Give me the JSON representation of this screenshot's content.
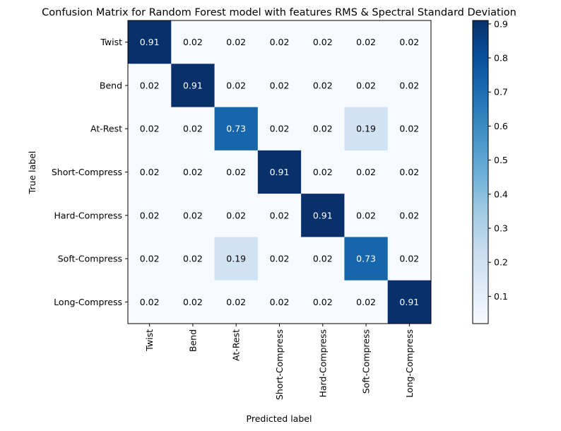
{
  "chart_data": {
    "type": "heatmap",
    "title": "Confusion Matrix for Random Forest model with features RMS & Spectral Standard Deviation",
    "xlabel": "Predicted label",
    "ylabel": "True label",
    "x_categories": [
      "Twist",
      "Bend",
      "At-Rest",
      "Short-Compress",
      "Hard-Compress",
      "Soft-Compress",
      "Long-Compress"
    ],
    "y_categories": [
      "Twist",
      "Bend",
      "At-Rest",
      "Short-Compress",
      "Hard-Compress",
      "Soft-Compress",
      "Long-Compress"
    ],
    "values": [
      [
        0.91,
        0.02,
        0.02,
        0.02,
        0.02,
        0.02,
        0.02
      ],
      [
        0.02,
        0.91,
        0.02,
        0.02,
        0.02,
        0.02,
        0.02
      ],
      [
        0.02,
        0.02,
        0.73,
        0.02,
        0.02,
        0.19,
        0.02
      ],
      [
        0.02,
        0.02,
        0.02,
        0.91,
        0.02,
        0.02,
        0.02
      ],
      [
        0.02,
        0.02,
        0.02,
        0.02,
        0.91,
        0.02,
        0.02
      ],
      [
        0.02,
        0.02,
        0.19,
        0.02,
        0.02,
        0.73,
        0.02
      ],
      [
        0.02,
        0.02,
        0.02,
        0.02,
        0.02,
        0.02,
        0.91
      ]
    ],
    "colormap": "Blues",
    "colorbar": {
      "range": [
        0.02,
        0.91
      ],
      "ticks": [
        0.1,
        0.2,
        0.3,
        0.4,
        0.5,
        0.6,
        0.7,
        0.8,
        0.9
      ],
      "tick_labels": [
        "0.1",
        "0.2",
        "0.3",
        "0.4",
        "0.5",
        "0.6",
        "0.7",
        "0.8",
        "0.9"
      ]
    }
  }
}
